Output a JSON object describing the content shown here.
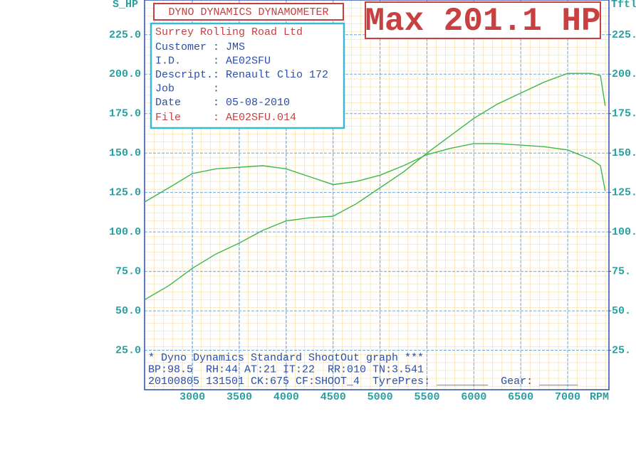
{
  "chart_data": {
    "type": "line",
    "title": "DYNO DYNAMICS DYNAMOMETER",
    "max_label": "Max 201.1 HP",
    "y_label": "S_HP",
    "y2_label": "Tftl",
    "x_label": "RPM",
    "info_title": "Surrey Rolling Road Ltd",
    "info_lines": [
      "Customer : JMS",
      "I.D.     : AE02SFU",
      "Descript.: Renault Clio 172",
      "Job      :",
      "Date     : 05-08-2010"
    ],
    "info_file": "File     : AE02SFU.014",
    "footer_lines": [
      "* Dyno Dynamics Standard ShootOut graph ***",
      "BP:98.5  RH:44 AT:21 IT:22  RR:010 TN:3.541",
      "20100805 131501 CK:675 CF:SHOOT_4  TyrePres: ________  Gear: ______"
    ],
    "x": [
      2490,
      2750,
      3000,
      3250,
      3500,
      3750,
      4000,
      4250,
      4500,
      4750,
      5000,
      5250,
      5500,
      5750,
      6000,
      6250,
      6500,
      6750,
      7000,
      7250,
      7350,
      7400
    ],
    "series": [
      {
        "color": "#3cb84a",
        "values": [
          57,
          66,
          77,
          86,
          93,
          101,
          107,
          109,
          110,
          118,
          128,
          138,
          150,
          161,
          172,
          181,
          188,
          195,
          200.5,
          200.5,
          199,
          180
        ]
      },
      {
        "color": "#3cb84a",
        "axis": "y2",
        "values": [
          119,
          128,
          137,
          140,
          141,
          142,
          140,
          135,
          130,
          132,
          136,
          142,
          149,
          153,
          156,
          156,
          155,
          154,
          152,
          146,
          142,
          126
        ]
      }
    ],
    "xlim": [
      2490,
      7440
    ],
    "xticks": [
      3000,
      3500,
      4000,
      4500,
      5000,
      5500,
      6000,
      6500,
      7000
    ],
    "ylim": [
      0,
      247
    ],
    "yticks": [
      {
        "value": 25,
        "label": "25.0"
      },
      {
        "value": 50,
        "label": "50.0"
      },
      {
        "value": 75,
        "label": "75.0"
      },
      {
        "value": 100,
        "label": "100.0"
      },
      {
        "value": 125,
        "label": "125.0"
      },
      {
        "value": 150,
        "label": "150.0"
      },
      {
        "value": 175,
        "label": "175.0"
      },
      {
        "value": 200,
        "label": "200.0"
      },
      {
        "value": 225,
        "label": "225.0"
      }
    ],
    "y2lim": [
      0,
      247
    ],
    "y2ticks": [
      {
        "value": 25,
        "label": "25."
      },
      {
        "value": 50,
        "label": "50."
      },
      {
        "value": 75,
        "label": "75."
      },
      {
        "value": 100,
        "label": "100."
      },
      {
        "value": 125,
        "label": "125."
      },
      {
        "value": 150,
        "label": "150."
      },
      {
        "value": 175,
        "label": "175."
      },
      {
        "value": 200,
        "label": "200."
      },
      {
        "value": 225,
        "label": "225."
      }
    ],
    "grid": true
  }
}
